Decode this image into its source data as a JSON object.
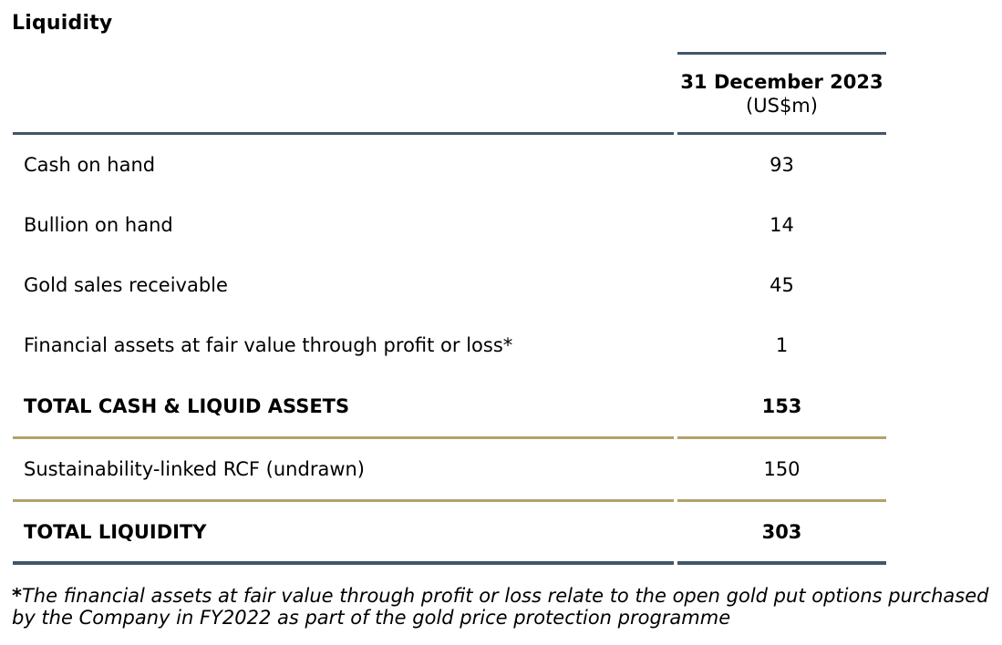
{
  "page": {
    "title": "Liquidity"
  },
  "table": {
    "header": {
      "date_line": "31 December 2023",
      "unit_line": "(US$m)"
    },
    "rows": [
      {
        "label": "Cash on hand",
        "value": "93"
      },
      {
        "label": "Bullion on hand",
        "value": "14"
      },
      {
        "label": "Gold sales receivable",
        "value": "45"
      },
      {
        "label": "Financial assets at fair value through profit or loss*",
        "value": "1"
      },
      {
        "label": "TOTAL CASH & LIQUID ASSETS",
        "value": "153"
      },
      {
        "label": "Sustainability-linked RCF (undrawn)",
        "value": "150"
      },
      {
        "label": "TOTAL LIQUIDITY",
        "value": "303"
      }
    ],
    "colors": {
      "rule_dark": "#42566a",
      "rule_gold": "#b3a16a",
      "text": "#000000"
    }
  },
  "footnote": {
    "marker": "*",
    "text": "The financial assets at fair value through profit or loss relate to the open gold put options purchased by the Company in FY2022 as part of the gold price protection programme"
  }
}
